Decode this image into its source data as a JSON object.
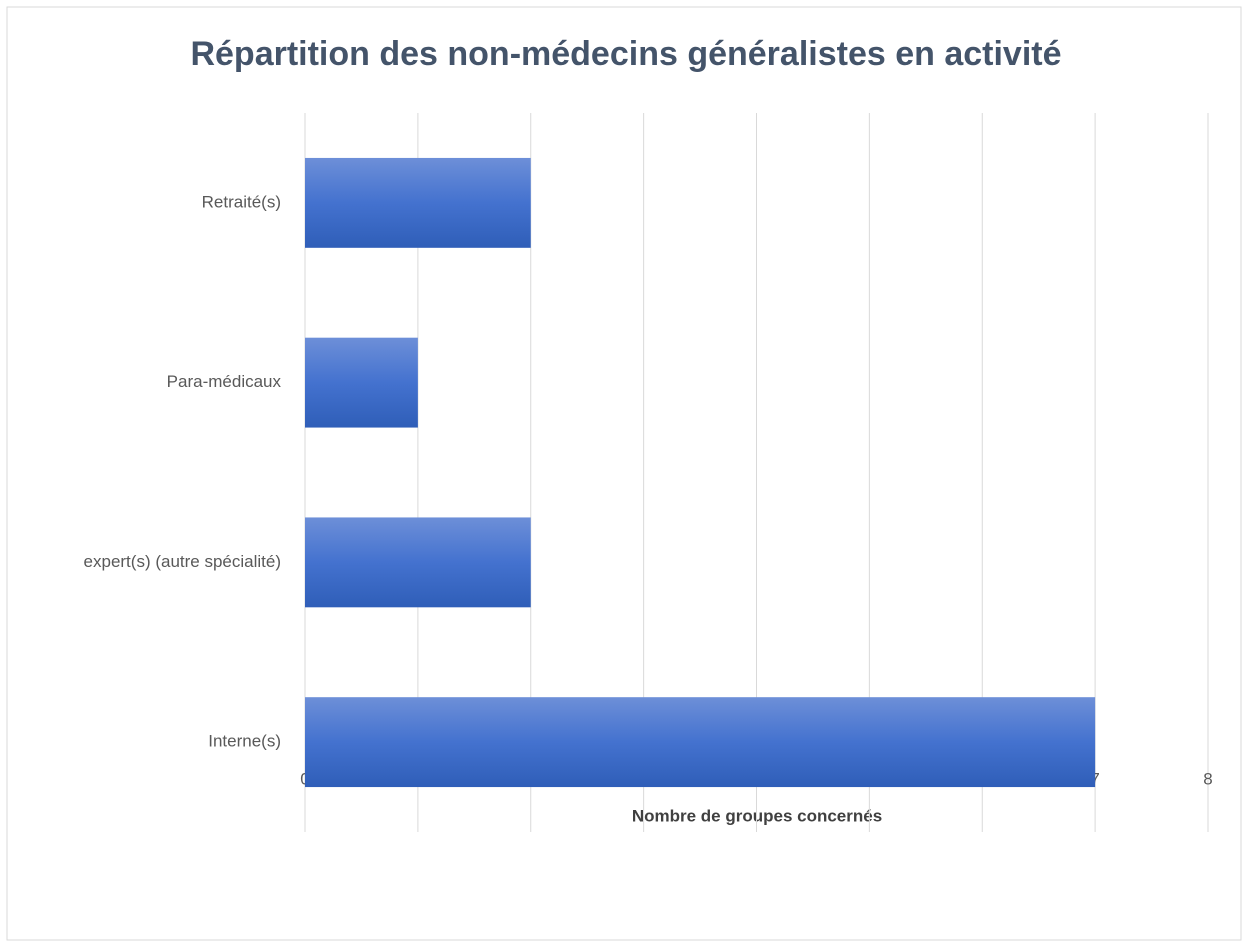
{
  "chart_data": {
    "type": "bar",
    "orientation": "horizontal",
    "title": "Répartition des non-médecins généralistes en activité",
    "x_label": "Nombre de groupes concernés",
    "categories": [
      "Retraité(s)",
      "Para-médicaux",
      "expert(s) (autre spécialité)",
      "Interne(s)"
    ],
    "values": [
      2,
      1,
      2,
      7
    ],
    "color": "#4472c4",
    "xlim": [
      0,
      8
    ],
    "xticks": [
      0,
      1,
      2,
      3,
      4,
      5,
      6,
      7,
      8
    ],
    "grid": true
  }
}
